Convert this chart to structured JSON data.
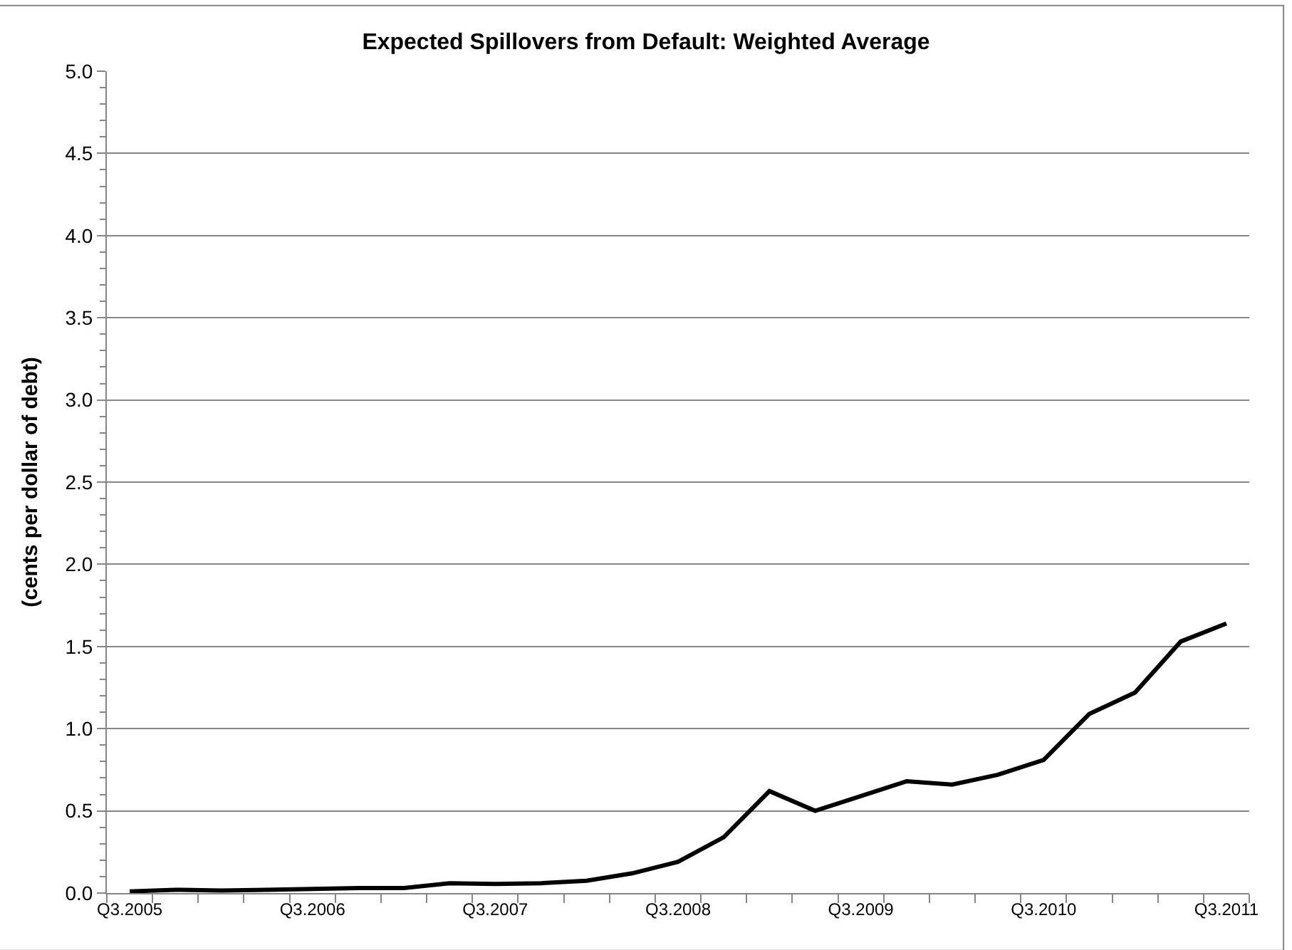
{
  "chart_data": {
    "type": "line",
    "title": "Expected Spillovers from Default: Weighted Average",
    "ylabel": "(cents per dollar of debt)",
    "categories": [
      "Q3.2005",
      null,
      null,
      null,
      "Q3.2006",
      null,
      null,
      null,
      "Q3.2007",
      null,
      null,
      null,
      "Q3.2008",
      null,
      null,
      null,
      "Q3.2009",
      null,
      null,
      null,
      "Q3.2010",
      null,
      null,
      null,
      "Q3.2011"
    ],
    "series": [
      {
        "color": "#000000",
        "values": [
          0.01,
          0.02,
          0.015,
          0.02,
          0.025,
          0.03,
          0.03,
          0.06,
          0.055,
          0.06,
          0.075,
          0.12,
          0.19,
          0.34,
          0.62,
          0.5,
          0.59,
          0.68,
          0.66,
          0.72,
          0.81,
          1.09,
          1.22,
          1.53,
          1.64
        ]
      }
    ],
    "ylim": [
      0,
      5
    ],
    "yticks": [
      {
        "value": 0,
        "label": "0.0"
      },
      0.5,
      {
        "value": 1,
        "label": "1.0"
      },
      1.5,
      {
        "value": 2,
        "label": "2.0"
      },
      2.5,
      {
        "value": 3,
        "label": "3.0"
      },
      3.5,
      {
        "value": 4,
        "label": "4.0"
      },
      4.5,
      {
        "value": 5,
        "label": "5.0"
      }
    ],
    "grid": "y",
    "marker": "none",
    "line_style": "solid"
  }
}
